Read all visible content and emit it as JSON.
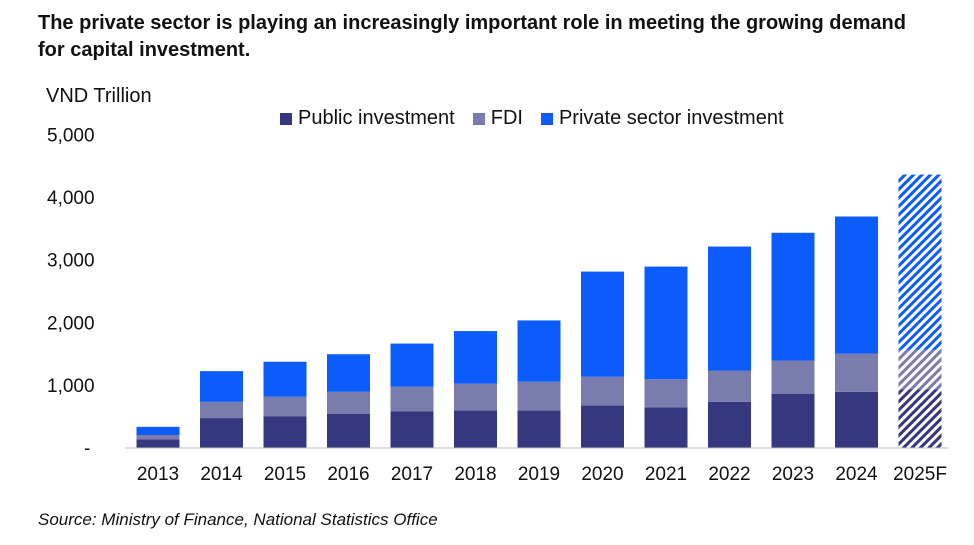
{
  "title": "The private sector is playing an increasingly important role in meeting the growing demand for capital investment.",
  "source": "Source: Ministry of Finance, National Statistics Office",
  "colors": {
    "public": "#35387f",
    "fdi": "#7a7cad",
    "private": "#0b5cfa"
  },
  "chart_data": {
    "type": "bar",
    "stacked": true,
    "ylabel": "VND Trillion",
    "ylim": [
      0,
      5000
    ],
    "yticks": [
      {
        "value": 0,
        "label": "-"
      },
      {
        "value": 1000,
        "label": "1,000"
      },
      {
        "value": 2000,
        "label": "2,000"
      },
      {
        "value": 3000,
        "label": "3,000"
      },
      {
        "value": 4000,
        "label": "4,000"
      },
      {
        "value": 5000,
        "label": "5,000"
      }
    ],
    "categories": [
      "2013",
      "2014",
      "2015",
      "2016",
      "2017",
      "2018",
      "2019",
      "2020",
      "2021",
      "2022",
      "2023",
      "2024",
      "2025F"
    ],
    "forecast_categories": [
      "2025F"
    ],
    "legend_position": "top",
    "series": [
      {
        "name": "Public investment",
        "key": "public",
        "values": [
          130,
          470,
          500,
          540,
          580,
          590,
          590,
          670,
          640,
          730,
          860,
          890,
          930
        ]
      },
      {
        "name": "FDI",
        "key": "fdi",
        "values": [
          70,
          260,
          310,
          350,
          390,
          430,
          460,
          460,
          450,
          500,
          530,
          610,
          630
        ]
      },
      {
        "name": "Private sector investment",
        "key": "private",
        "values": [
          130,
          490,
          560,
          600,
          690,
          840,
          980,
          1680,
          1800,
          1980,
          2040,
          2190,
          2800
        ]
      }
    ]
  }
}
